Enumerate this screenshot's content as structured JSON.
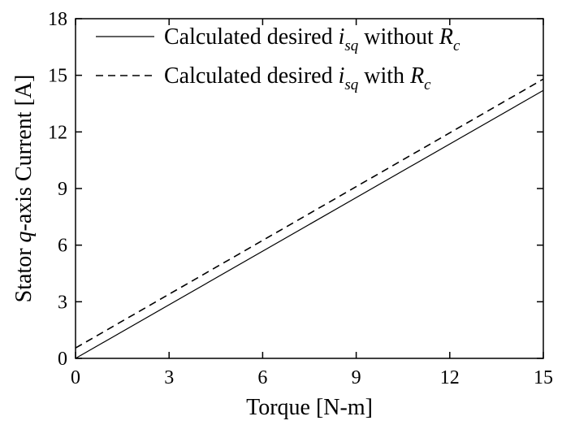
{
  "chart_data": {
    "type": "line",
    "xlabel": "Torque [N-m]",
    "ylabel": {
      "prefix": "Stator ",
      "italic": "q",
      "suffix": "-axis Current [A]"
    },
    "xlim": [
      0,
      15
    ],
    "ylim": [
      0,
      18
    ],
    "xticks": [
      "0",
      "3",
      "6",
      "9",
      "12",
      "15"
    ],
    "yticks": [
      "0",
      "3",
      "6",
      "9",
      "12",
      "15",
      "18"
    ],
    "grid": false,
    "legend_position": "top-right",
    "series": [
      {
        "legend": {
          "text": "Calculated desired ",
          "var": "i",
          "var_sub": "sq",
          "mid": " without ",
          "sym": "R",
          "sym_sub": "c"
        },
        "style": "solid",
        "color": "#000000",
        "x": [
          0,
          15
        ],
        "y": [
          0,
          14.2
        ]
      },
      {
        "legend": {
          "text": "Calculated desired ",
          "var": "i",
          "var_sub": "sq",
          "mid": " with ",
          "sym": "R",
          "sym_sub": "c"
        },
        "style": "dashed",
        "color": "#000000",
        "x": [
          0,
          15
        ],
        "y": [
          0.55,
          14.8
        ]
      }
    ]
  }
}
